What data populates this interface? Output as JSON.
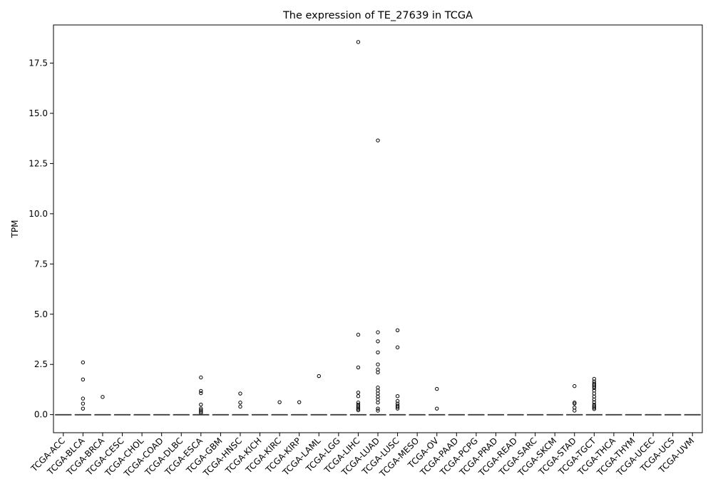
{
  "chart_data": {
    "type": "box",
    "title": "The expression of TE_27639 in TCGA",
    "xlabel": "",
    "ylabel": "TPM",
    "ylim": [
      -0.9,
      19.4
    ],
    "yticks": [
      0.0,
      2.5,
      5.0,
      7.5,
      10.0,
      12.5,
      15.0,
      17.5
    ],
    "ytick_labels": [
      "0.0",
      "2.5",
      "5.0",
      "7.5",
      "10.0",
      "12.5",
      "15.0",
      "17.5"
    ],
    "grid": false,
    "categories": [
      "TCGA-ACC",
      "TCGA-BLCA",
      "TCGA-BRCA",
      "TCGA-CESC",
      "TCGA-CHOL",
      "TCGA-COAD",
      "TCGA-DLBC",
      "TCGA-ESCA",
      "TCGA-GBM",
      "TCGA-HNSC",
      "TCGA-KICH",
      "TCGA-KIRC",
      "TCGA-KIRP",
      "TCGA-LAML",
      "TCGA-LGG",
      "TCGA-LIHC",
      "TCGA-LUAD",
      "TCGA-LUSC",
      "TCGA-MESO",
      "TCGA-OV",
      "TCGA-PAAD",
      "TCGA-PCPG",
      "TCGA-PRAD",
      "TCGA-READ",
      "TCGA-SARC",
      "TCGA-SKCM",
      "TCGA-STAD",
      "TCGA-TGCT",
      "TCGA-THCA",
      "TCGA-THYM",
      "TCGA-UCEC",
      "TCGA-UCS",
      "TCGA-UVM"
    ],
    "boxes": [
      {
        "median": 0,
        "q1": 0,
        "q3": 0,
        "whisker_low": 0,
        "whisker_high": 0,
        "outliers": []
      },
      {
        "median": 0,
        "q1": 0,
        "q3": 0,
        "whisker_low": 0,
        "whisker_high": 0,
        "outliers": [
          2.6,
          1.75,
          0.8,
          0.55,
          0.3
        ]
      },
      {
        "median": 0,
        "q1": 0,
        "q3": 0,
        "whisker_low": 0,
        "whisker_high": 0,
        "outliers": [
          0.88
        ]
      },
      {
        "median": 0,
        "q1": 0,
        "q3": 0,
        "whisker_low": 0,
        "whisker_high": 0,
        "outliers": []
      },
      {
        "median": 0,
        "q1": 0,
        "q3": 0,
        "whisker_low": 0,
        "whisker_high": 0,
        "outliers": []
      },
      {
        "median": 0,
        "q1": 0,
        "q3": 0,
        "whisker_low": 0,
        "whisker_high": 0,
        "outliers": []
      },
      {
        "median": 0,
        "q1": 0,
        "q3": 0,
        "whisker_low": 0,
        "whisker_high": 0,
        "outliers": []
      },
      {
        "median": 0,
        "q1": 0,
        "q3": 0,
        "whisker_low": 0,
        "whisker_high": 0,
        "outliers": [
          1.85,
          1.18,
          1.07,
          0.5,
          0.3,
          0.22,
          0.15,
          0.08
        ]
      },
      {
        "median": 0,
        "q1": 0,
        "q3": 0,
        "whisker_low": 0,
        "whisker_high": 0,
        "outliers": []
      },
      {
        "median": 0,
        "q1": 0,
        "q3": 0,
        "whisker_low": 0,
        "whisker_high": 0,
        "outliers": [
          1.05,
          0.6,
          0.4
        ]
      },
      {
        "median": 0,
        "q1": 0,
        "q3": 0,
        "whisker_low": 0,
        "whisker_high": 0,
        "outliers": []
      },
      {
        "median": 0,
        "q1": 0,
        "q3": 0,
        "whisker_low": 0,
        "whisker_high": 0,
        "outliers": [
          0.62
        ]
      },
      {
        "median": 0,
        "q1": 0,
        "q3": 0,
        "whisker_low": 0,
        "whisker_high": 0,
        "outliers": [
          0.62
        ]
      },
      {
        "median": 0,
        "q1": 0,
        "q3": 0,
        "whisker_low": 0,
        "whisker_high": 0,
        "outliers": [
          1.92
        ]
      },
      {
        "median": 0,
        "q1": 0,
        "q3": 0,
        "whisker_low": 0,
        "whisker_high": 0,
        "outliers": []
      },
      {
        "median": 0,
        "q1": 0,
        "q3": 0,
        "whisker_low": 0,
        "whisker_high": 0,
        "outliers": [
          18.55,
          3.98,
          2.35,
          1.1,
          0.92,
          0.6,
          0.5,
          0.42,
          0.35,
          0.28,
          0.22
        ]
      },
      {
        "median": 0,
        "q1": 0,
        "q3": 0,
        "whisker_low": 0,
        "whisker_high": 0,
        "outliers": [
          13.65,
          4.1,
          3.65,
          3.1,
          2.5,
          2.25,
          2.1,
          1.35,
          1.2,
          1.05,
          0.9,
          0.75,
          0.6,
          0.3,
          0.2
        ]
      },
      {
        "median": 0,
        "q1": 0,
        "q3": 0,
        "whisker_low": 0,
        "whisker_high": 0,
        "outliers": [
          4.2,
          3.35,
          0.92,
          0.68,
          0.55,
          0.45,
          0.38,
          0.3
        ]
      },
      {
        "median": 0,
        "q1": 0,
        "q3": 0,
        "whisker_low": 0,
        "whisker_high": 0,
        "outliers": []
      },
      {
        "median": 0,
        "q1": 0,
        "q3": 0,
        "whisker_low": 0,
        "whisker_high": 0,
        "outliers": [
          1.28,
          0.3
        ]
      },
      {
        "median": 0,
        "q1": 0,
        "q3": 0,
        "whisker_low": 0,
        "whisker_high": 0,
        "outliers": []
      },
      {
        "median": 0,
        "q1": 0,
        "q3": 0,
        "whisker_low": 0,
        "whisker_high": 0,
        "outliers": []
      },
      {
        "median": 0,
        "q1": 0,
        "q3": 0,
        "whisker_low": 0,
        "whisker_high": 0,
        "outliers": []
      },
      {
        "median": 0,
        "q1": 0,
        "q3": 0,
        "whisker_low": 0,
        "whisker_high": 0,
        "outliers": []
      },
      {
        "median": 0,
        "q1": 0,
        "q3": 0,
        "whisker_low": 0,
        "whisker_high": 0,
        "outliers": []
      },
      {
        "median": 0,
        "q1": 0,
        "q3": 0,
        "whisker_low": 0,
        "whisker_high": 0,
        "outliers": []
      },
      {
        "median": 0,
        "q1": 0,
        "q3": 0,
        "whisker_low": 0,
        "whisker_high": 0,
        "outliers": [
          1.42,
          0.6,
          0.55,
          0.35,
          0.2
        ]
      },
      {
        "median": 0,
        "q1": 0,
        "q3": 0,
        "whisker_low": 0,
        "whisker_high": 0,
        "outliers": [
          1.78,
          1.65,
          1.55,
          1.48,
          1.4,
          1.32,
          1.2,
          1.05,
          0.9,
          0.75,
          0.62,
          0.5,
          0.42,
          0.35,
          0.28
        ]
      },
      {
        "median": 0,
        "q1": 0,
        "q3": 0,
        "whisker_low": 0,
        "whisker_high": 0,
        "outliers": []
      },
      {
        "median": 0,
        "q1": 0,
        "q3": 0,
        "whisker_low": 0,
        "whisker_high": 0,
        "outliers": []
      },
      {
        "median": 0,
        "q1": 0,
        "q3": 0,
        "whisker_low": 0,
        "whisker_high": 0,
        "outliers": []
      },
      {
        "median": 0,
        "q1": 0,
        "q3": 0,
        "whisker_low": 0,
        "whisker_high": 0,
        "outliers": []
      },
      {
        "median": 0,
        "q1": 0,
        "q3": 0,
        "whisker_low": 0,
        "whisker_high": 0,
        "outliers": []
      }
    ],
    "colors": {
      "box_line": "#3d3d3d",
      "median_line": "#3d3d3d",
      "outlier_edge": "#000000",
      "axis": "#000000"
    }
  }
}
